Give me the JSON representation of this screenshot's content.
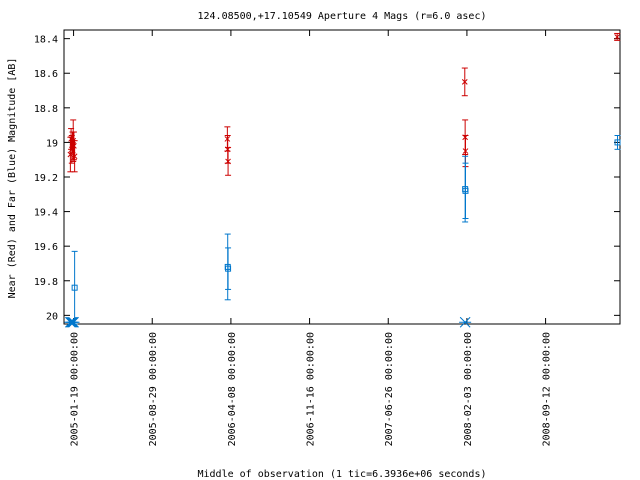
{
  "chart_data": {
    "type": "scatter",
    "title": "124.08500,+17.10549   Aperture 4 Mags (r=6.0 asec)",
    "xlabel": "Middle of observation (1 tic=6.3936e+06 seconds)",
    "ylabel": "Near (Red) and Far (Blue) Magnitude [AB]",
    "ylim": [
      20.05,
      18.35
    ],
    "y_inverted": true,
    "y_ticks": [
      "18.4",
      "18.6",
      "18.8",
      "19",
      "19.2",
      "19.4",
      "19.6",
      "19.8",
      "20"
    ],
    "x_ticks": [
      "2005-01-19 00:00:00",
      "2005-08-29 00:00:00",
      "2006-04-08 00:00:00",
      "2006-11-16 00:00:00",
      "2007-06-26 00:00:00",
      "2008-02-03 00:00:00",
      "2008-09-12 00:00:00"
    ],
    "xlim": [
      "2004-12-23",
      "2009-04-10"
    ],
    "series": [
      {
        "color": "#cc0000",
        "marker": "x",
        "points": [
          {
            "x": "2005-01-10",
            "y": 19.07,
            "err": 0.1
          },
          {
            "x": "2005-01-12",
            "y": 18.98,
            "err": 0.06
          },
          {
            "x": "2005-01-14",
            "y": 19.04,
            "err": 0.08
          },
          {
            "x": "2005-01-16",
            "y": 19.0,
            "err": 0.06
          },
          {
            "x": "2005-01-18",
            "y": 18.99,
            "err": 0.12
          },
          {
            "x": "2005-01-20",
            "y": 19.02,
            "err": 0.08
          },
          {
            "x": "2005-01-22",
            "y": 19.08,
            "err": 0.09
          },
          {
            "x": "2006-03-29",
            "y": 18.98,
            "err": 0.07
          },
          {
            "x": "2006-03-30",
            "y": 19.04,
            "err": 0.08
          },
          {
            "x": "2006-03-31",
            "y": 19.11,
            "err": 0.08
          },
          {
            "x": "2008-01-28",
            "y": 18.65,
            "err": 0.08
          },
          {
            "x": "2008-01-29",
            "y": 18.97,
            "err": 0.1
          },
          {
            "x": "2008-01-30",
            "y": 19.05,
            "err": 0.09
          },
          {
            "x": "2009-04-02",
            "y": 18.39,
            "err": 0.02
          }
        ]
      },
      {
        "color": "#0077cc",
        "marker": "square",
        "points": [
          {
            "x": "2005-01-22",
            "y": 19.84,
            "err": 0.21
          },
          {
            "x": "2006-03-30",
            "y": 19.72,
            "err": 0.19
          },
          {
            "x": "2006-03-31",
            "y": 19.73,
            "err": 0.12
          },
          {
            "x": "2008-01-29",
            "y": 19.27,
            "err": 0.19
          },
          {
            "x": "2008-01-30",
            "y": 19.28,
            "err": 0.16
          },
          {
            "x": "2009-04-03",
            "y": 19.0,
            "err": 0.04
          }
        ]
      },
      {
        "color": "#0077cc",
        "marker": "star",
        "points": [
          {
            "x": "2005-01-10",
            "y": 20.04
          },
          {
            "x": "2005-01-13",
            "y": 20.04
          },
          {
            "x": "2005-01-16",
            "y": 20.04
          },
          {
            "x": "2005-01-19",
            "y": 20.04
          },
          {
            "x": "2008-01-29",
            "y": 20.04
          }
        ]
      }
    ]
  }
}
